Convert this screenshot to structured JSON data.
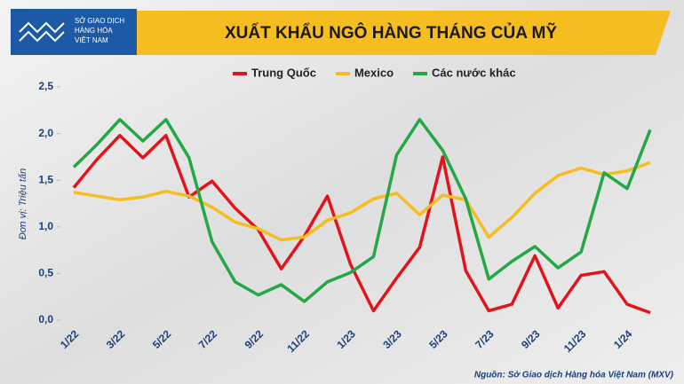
{
  "chart_data": {
    "type": "line",
    "title": "XUẤT KHẨU NGÔ HÀNG THÁNG CỦA MỸ",
    "logo_text": [
      "SỞ GIAO DỊCH",
      "HÀNG HÓA",
      "VIỆT NAM"
    ],
    "y_label": "Đơn vị: Triệu tấn",
    "source": "Nguồn: Sở Giao dịch Hàng hóa Việt Nam (MXV)",
    "categories": [
      "1/22",
      null,
      "3/22",
      null,
      "5/22",
      null,
      "7/22",
      null,
      "9/22",
      null,
      "11/22",
      null,
      "1/23",
      null,
      "3/23",
      null,
      "5/23",
      null,
      "7/23",
      null,
      "9/23",
      null,
      "11/23",
      null,
      "1/24",
      null
    ],
    "series": [
      {
        "name": "Trung Quốc",
        "color": "#e3121b",
        "values": [
          1.42,
          1.72,
          1.98,
          1.74,
          1.98,
          1.32,
          1.49,
          1.2,
          0.97,
          0.55,
          0.9,
          1.33,
          0.6,
          0.1,
          0.45,
          0.78,
          1.75,
          0.53,
          0.1,
          0.17,
          0.69,
          0.13,
          0.48,
          0.52,
          0.17,
          0.08
        ]
      },
      {
        "name": "Mexico",
        "color": "#f5bd1f",
        "values": [
          1.37,
          1.33,
          1.29,
          1.32,
          1.38,
          1.33,
          1.21,
          1.05,
          0.98,
          0.86,
          0.89,
          1.07,
          1.15,
          1.3,
          1.36,
          1.13,
          1.34,
          1.29,
          0.89,
          1.1,
          1.36,
          1.55,
          1.63,
          1.56,
          1.6,
          1.69
        ]
      },
      {
        "name": "Các nước khác",
        "color": "#22a844",
        "values": [
          1.64,
          1.88,
          2.15,
          1.92,
          2.15,
          1.74,
          0.84,
          0.41,
          0.27,
          0.38,
          0.2,
          0.41,
          0.51,
          0.68,
          1.77,
          2.15,
          1.82,
          1.3,
          0.44,
          0.63,
          0.79,
          0.56,
          0.73,
          1.58,
          1.41,
          2.04
        ]
      }
    ],
    "ylim": [
      0,
      2.5
    ],
    "yticks": [
      {
        "value": 0,
        "label": "0,0"
      },
      {
        "value": 0.5,
        "label": "0,5"
      },
      {
        "value": 1,
        "label": "1,0"
      },
      {
        "value": 1.5,
        "label": "1,5"
      },
      {
        "value": 2,
        "label": "2,0"
      },
      {
        "value": 2.5,
        "label": "2,5"
      }
    ]
  }
}
